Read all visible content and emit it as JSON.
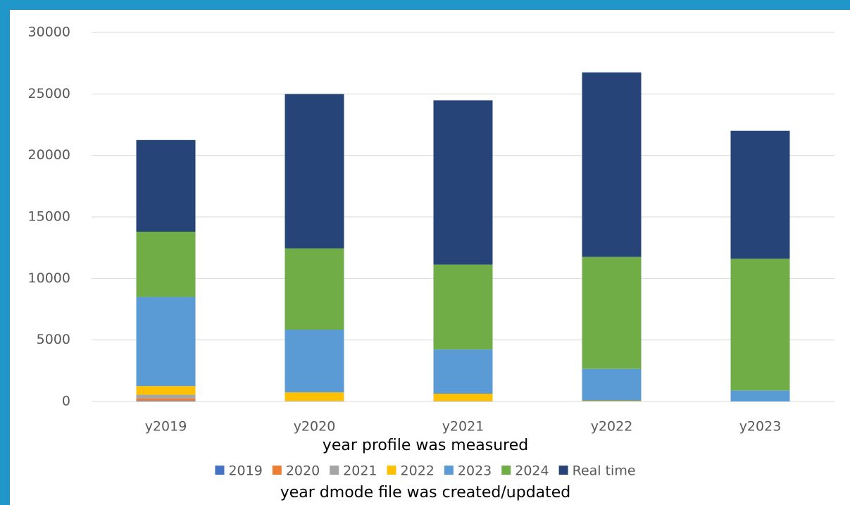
{
  "chart_data": {
    "type": "bar",
    "stacked": true,
    "x_label": "year profile was measured",
    "legend_title": "year dmode file was created/updated",
    "categories": [
      "y2019",
      "y2020",
      "y2021",
      "y2022",
      "y2023"
    ],
    "series": [
      {
        "name": "2019",
        "color": "#4472c4",
        "values": [
          50,
          0,
          0,
          0,
          0
        ]
      },
      {
        "name": "2020",
        "color": "#ed7d31",
        "values": [
          200,
          0,
          0,
          0,
          0
        ]
      },
      {
        "name": "2021",
        "color": "#a5a5a5",
        "values": [
          300,
          40,
          30,
          0,
          0
        ]
      },
      {
        "name": "2022",
        "color": "#ffc000",
        "values": [
          700,
          700,
          600,
          50,
          0
        ]
      },
      {
        "name": "2023",
        "color": "#5b9bd5",
        "values": [
          7250,
          5100,
          3600,
          2600,
          900
        ]
      },
      {
        "name": "2024",
        "color": "#70ad47",
        "values": [
          5300,
          6600,
          6900,
          9100,
          10700
        ]
      },
      {
        "name": "Real time",
        "color": "#264478",
        "values": [
          7450,
          12550,
          13350,
          15000,
          10400
        ]
      }
    ],
    "ylim": [
      0,
      30000
    ],
    "yticks": [
      0,
      5000,
      10000,
      15000,
      20000,
      25000,
      30000
    ],
    "grid": true,
    "legend": "bottom"
  }
}
